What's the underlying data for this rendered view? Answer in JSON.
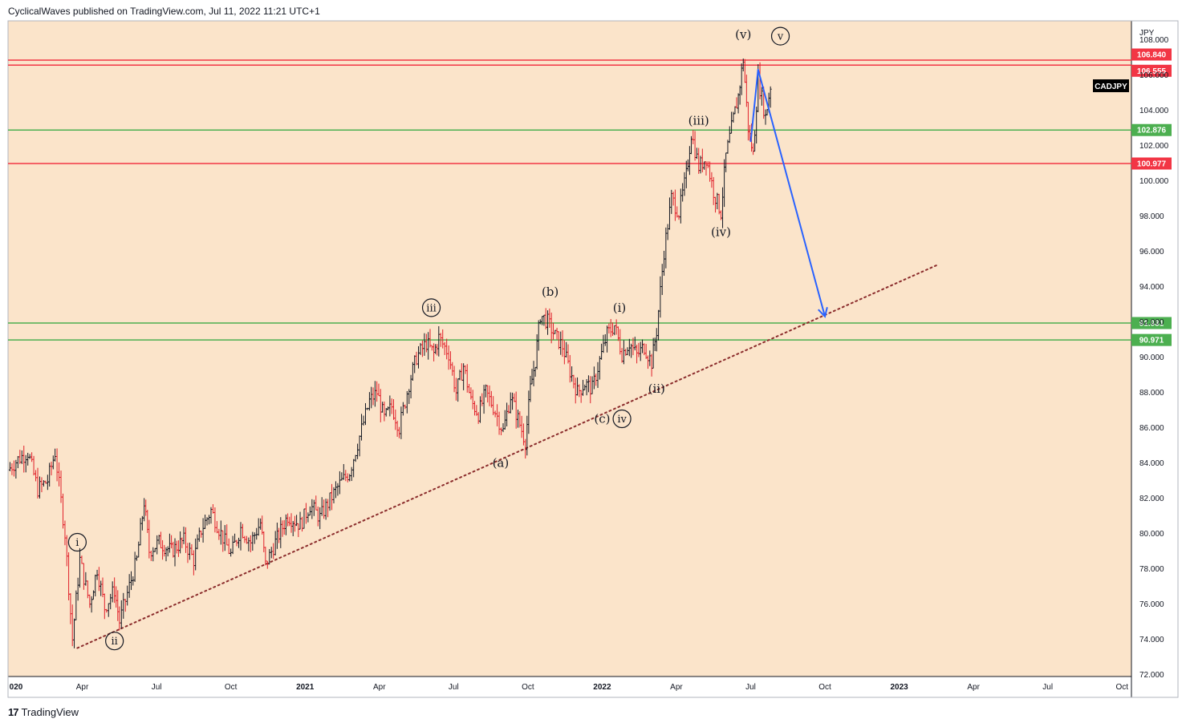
{
  "header": {
    "text": "CyclicalWaves published on TradingView.com, Jul 11, 2022 11:21 UTC+1"
  },
  "footer": {
    "logo": "17",
    "brand": "TradingView"
  },
  "symbol_badge": "CADJPY",
  "axis_unit": "JPY",
  "colors": {
    "background": "#fbe4ca",
    "up": "#131722",
    "down": "#e0202a",
    "support": "#4caf50",
    "resistance": "#f23645",
    "forecast": "#2962ff",
    "trendline": "#8b2c2c"
  },
  "chart_data": {
    "type": "candlestick",
    "symbol": "CADJPY",
    "ylim": [
      72,
      108
    ],
    "y_ticks": [
      72,
      74,
      76,
      78,
      80,
      82,
      84,
      86,
      88,
      90,
      92,
      94,
      96,
      98,
      100,
      102,
      104,
      106,
      108
    ],
    "y_tick_labels": [
      "72.000",
      "74.000",
      "76.000",
      "78.000",
      "80.000",
      "82.000",
      "84.000",
      "86.000",
      "88.000",
      "90.000",
      "92.000",
      "94.000",
      "96.000",
      "98.000",
      "100.000",
      "102.000",
      "104.000",
      "106.000",
      "108.000"
    ],
    "x_start": "2020-01",
    "x_ticks": [
      {
        "label": "020",
        "m": 0,
        "bold": true
      },
      {
        "label": "Apr",
        "m": 3
      },
      {
        "label": "Jul",
        "m": 6
      },
      {
        "label": "Oct",
        "m": 9
      },
      {
        "label": "2021",
        "m": 12,
        "bold": true
      },
      {
        "label": "Apr",
        "m": 15
      },
      {
        "label": "Jul",
        "m": 18
      },
      {
        "label": "Oct",
        "m": 21
      },
      {
        "label": "2022",
        "m": 24,
        "bold": true
      },
      {
        "label": "Apr",
        "m": 27
      },
      {
        "label": "Jul",
        "m": 30
      },
      {
        "label": "Oct",
        "m": 33
      },
      {
        "label": "2023",
        "m": 36,
        "bold": true
      },
      {
        "label": "Apr",
        "m": 39
      },
      {
        "label": "Jul",
        "m": 42
      },
      {
        "label": "Oct",
        "m": 45
      }
    ],
    "price_path": [
      [
        0.0,
        83.6
      ],
      [
        0.4,
        84.2
      ],
      [
        0.8,
        84.6
      ],
      [
        1.2,
        82.5
      ],
      [
        1.6,
        83.0
      ],
      [
        1.9,
        84.6
      ],
      [
        2.3,
        80.0
      ],
      [
        2.6,
        74.0
      ],
      [
        2.9,
        78.5
      ],
      [
        3.3,
        76.0
      ],
      [
        3.6,
        78.0
      ],
      [
        3.9,
        75.8
      ],
      [
        4.3,
        76.8
      ],
      [
        4.5,
        75.0
      ],
      [
        4.9,
        77.0
      ],
      [
        5.2,
        78.5
      ],
      [
        5.5,
        81.8
      ],
      [
        5.7,
        79.0
      ],
      [
        6.1,
        79.5
      ],
      [
        6.6,
        79.0
      ],
      [
        7.1,
        79.6
      ],
      [
        7.5,
        78.5
      ],
      [
        7.8,
        80.2
      ],
      [
        8.2,
        81.3
      ],
      [
        8.6,
        80.0
      ],
      [
        9.0,
        78.8
      ],
      [
        9.4,
        80.3
      ],
      [
        9.8,
        79.5
      ],
      [
        10.2,
        80.6
      ],
      [
        10.4,
        78.2
      ],
      [
        10.8,
        79.5
      ],
      [
        11.3,
        81.0
      ],
      [
        11.8,
        80.5
      ],
      [
        12.2,
        81.6
      ],
      [
        12.6,
        80.9
      ],
      [
        13.0,
        81.9
      ],
      [
        13.4,
        82.8
      ],
      [
        13.8,
        83.5
      ],
      [
        14.2,
        85.5
      ],
      [
        14.6,
        87.5
      ],
      [
        14.9,
        88.0
      ],
      [
        15.2,
        86.5
      ],
      [
        15.5,
        87.2
      ],
      [
        15.8,
        86.0
      ],
      [
        16.2,
        88.5
      ],
      [
        16.5,
        90.0
      ],
      [
        16.9,
        90.8
      ],
      [
        17.2,
        90.2
      ],
      [
        17.4,
        91.1
      ],
      [
        17.8,
        90.2
      ],
      [
        18.1,
        88.0
      ],
      [
        18.4,
        89.5
      ],
      [
        18.7,
        87.5
      ],
      [
        19.0,
        86.8
      ],
      [
        19.3,
        88.0
      ],
      [
        19.6,
        87.2
      ],
      [
        20.0,
        85.8
      ],
      [
        20.3,
        87.8
      ],
      [
        20.6,
        86.5
      ],
      [
        20.9,
        85.2
      ],
      [
        21.1,
        88.2
      ],
      [
        21.3,
        89.8
      ],
      [
        21.5,
        92.4
      ],
      [
        21.8,
        92.0
      ],
      [
        22.1,
        91.2
      ],
      [
        22.4,
        90.6
      ],
      [
        22.7,
        89.2
      ],
      [
        23.0,
        88.0
      ],
      [
        23.3,
        88.5
      ],
      [
        23.6,
        88.2
      ],
      [
        23.9,
        89.8
      ],
      [
        24.2,
        91.3
      ],
      [
        24.5,
        91.8
      ],
      [
        24.8,
        90.2
      ],
      [
        25.1,
        90.8
      ],
      [
        25.4,
        90.1
      ],
      [
        25.7,
        90.6
      ],
      [
        26.0,
        89.7
      ],
      [
        26.2,
        91.5
      ],
      [
        26.5,
        96.0
      ],
      [
        26.8,
        99.0
      ],
      [
        27.1,
        98.2
      ],
      [
        27.4,
        100.3
      ],
      [
        27.6,
        102.7
      ],
      [
        27.9,
        100.8
      ],
      [
        28.2,
        101.3
      ],
      [
        28.5,
        99.4
      ],
      [
        28.8,
        98.2
      ],
      [
        29.0,
        101.4
      ],
      [
        29.3,
        103.5
      ],
      [
        29.5,
        104.8
      ],
      [
        29.7,
        106.9
      ],
      [
        29.9,
        103.0
      ],
      [
        30.1,
        101.5
      ],
      [
        30.3,
        105.8
      ],
      [
        30.6,
        103.6
      ],
      [
        30.8,
        105.4
      ]
    ],
    "horizontal_levels": [
      {
        "value": 106.84,
        "label": "106.840",
        "kind": "resistance"
      },
      {
        "value": 106.555,
        "label": "106.555",
        "kind": "resistance"
      },
      {
        "value": 102.876,
        "label": "102.876",
        "kind": "support"
      },
      {
        "value": 100.977,
        "label": "100.977",
        "kind": "resistance"
      },
      {
        "value": 91.931,
        "label": "91.931",
        "kind": "support"
      },
      {
        "value": 90.971,
        "label": "90.971",
        "kind": "support"
      }
    ],
    "trendline": {
      "from": [
        2.8,
        73.5
      ],
      "to": [
        37.5,
        95.2
      ],
      "style": "dotted"
    },
    "forecast_path": [
      [
        30.0,
        102.2
      ],
      [
        30.3,
        106.3
      ],
      [
        33.0,
        92.3
      ]
    ],
    "wave_labels": [
      {
        "text": "i",
        "m": 2.8,
        "y": 79.5,
        "circled": true
      },
      {
        "text": "ii",
        "m": 4.3,
        "y": 73.9,
        "circled": true
      },
      {
        "text": "iii",
        "m": 17.1,
        "y": 92.8,
        "circled": true
      },
      {
        "text": "(a)",
        "m": 19.9,
        "y": 84.0,
        "circled": false
      },
      {
        "text": "(b)",
        "m": 21.9,
        "y": 93.7,
        "circled": false
      },
      {
        "text": "(i)",
        "m": 24.7,
        "y": 92.8,
        "circled": false
      },
      {
        "text": "(c)",
        "m": 24.0,
        "y": 86.5,
        "circled": false
      },
      {
        "text": "iv",
        "m": 24.8,
        "y": 86.5,
        "circled": true
      },
      {
        "text": "(ii)",
        "m": 26.2,
        "y": 88.2,
        "circled": false
      },
      {
        "text": "(iii)",
        "m": 27.9,
        "y": 103.4,
        "circled": false
      },
      {
        "text": "(iv)",
        "m": 28.8,
        "y": 97.1,
        "circled": false
      },
      {
        "text": "(v)",
        "m": 29.7,
        "y": 108.3,
        "circled": false
      },
      {
        "text": "v",
        "m": 31.2,
        "y": 108.2,
        "circled": true
      }
    ]
  }
}
